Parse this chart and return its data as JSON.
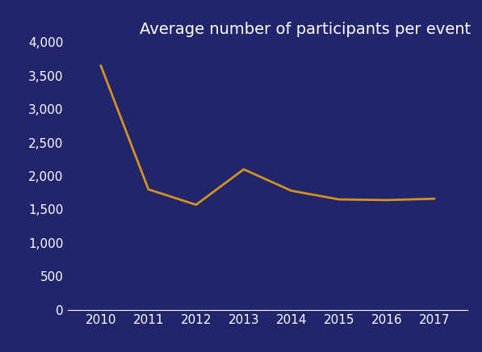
{
  "years": [
    2010,
    2011,
    2012,
    2013,
    2014,
    2015,
    2016,
    2017
  ],
  "values": [
    3650,
    1800,
    1570,
    2100,
    1780,
    1650,
    1640,
    1660
  ],
  "title": "Average number of participants per event",
  "line_color": "#D4921E",
  "background_color": "#21256B",
  "text_color": "#FFFFFF",
  "ylim": [
    0,
    4000
  ],
  "yticks": [
    0,
    500,
    1000,
    1500,
    2000,
    2500,
    3000,
    3500,
    4000
  ],
  "title_fontsize": 14,
  "tick_fontsize": 11,
  "line_width": 2.0,
  "figsize": [
    5.97,
    4.36
  ],
  "dpi": 100
}
